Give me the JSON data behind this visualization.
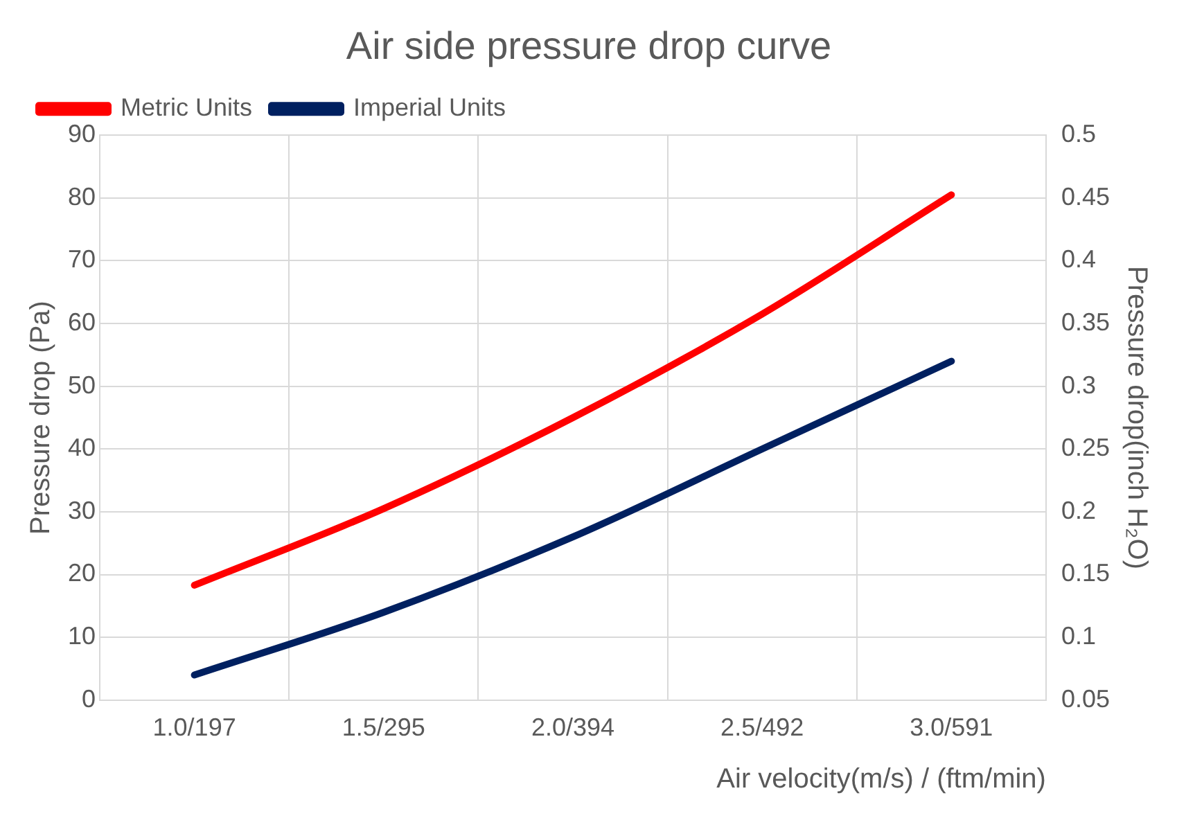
{
  "chart_data": {
    "type": "line",
    "title": "Air side pressure drop curve",
    "xlabel": "Air velocity(m/s) / (ftm/min)",
    "ylabel": "Pressure drop (Pa)",
    "y2label": "Pressure drop(inch H₂O)",
    "categories": [
      "1.0/197",
      "1.5/295",
      "2.0/394",
      "2.5/492",
      "3.0/591"
    ],
    "series": [
      {
        "name": "Metric Units",
        "color": "#ff0000",
        "values": [
          18.3,
          30.5,
          45,
          61.5,
          80.5
        ]
      },
      {
        "name": "Imperial Units",
        "color": "#002060",
        "axis": "y2",
        "values": [
          0.07,
          0.12,
          0.18,
          0.25,
          0.32
        ]
      }
    ],
    "ylim": [
      0,
      90
    ],
    "yticks": [
      0,
      10,
      20,
      30,
      40,
      50,
      60,
      70,
      80,
      90
    ],
    "y2lim": [
      0.05,
      0.5
    ],
    "y2ticks": [
      {
        "value": 0.05,
        "label": "0.05"
      },
      {
        "value": 0.1,
        "label": "0.1"
      },
      {
        "value": 0.15,
        "label": "0.15"
      },
      {
        "value": 0.2,
        "label": "0.2"
      },
      {
        "value": 0.25,
        "label": "0.25"
      },
      {
        "value": 0.3,
        "label": "0.3"
      },
      {
        "value": 0.35,
        "label": "0.35"
      },
      {
        "value": 0.4,
        "label": "0.4"
      },
      {
        "value": 0.45,
        "label": "0.45"
      },
      {
        "value": 0.5,
        "label": "0.5"
      }
    ],
    "grid": true,
    "legend": "top left",
    "marker": "none",
    "line_style": "solid"
  }
}
